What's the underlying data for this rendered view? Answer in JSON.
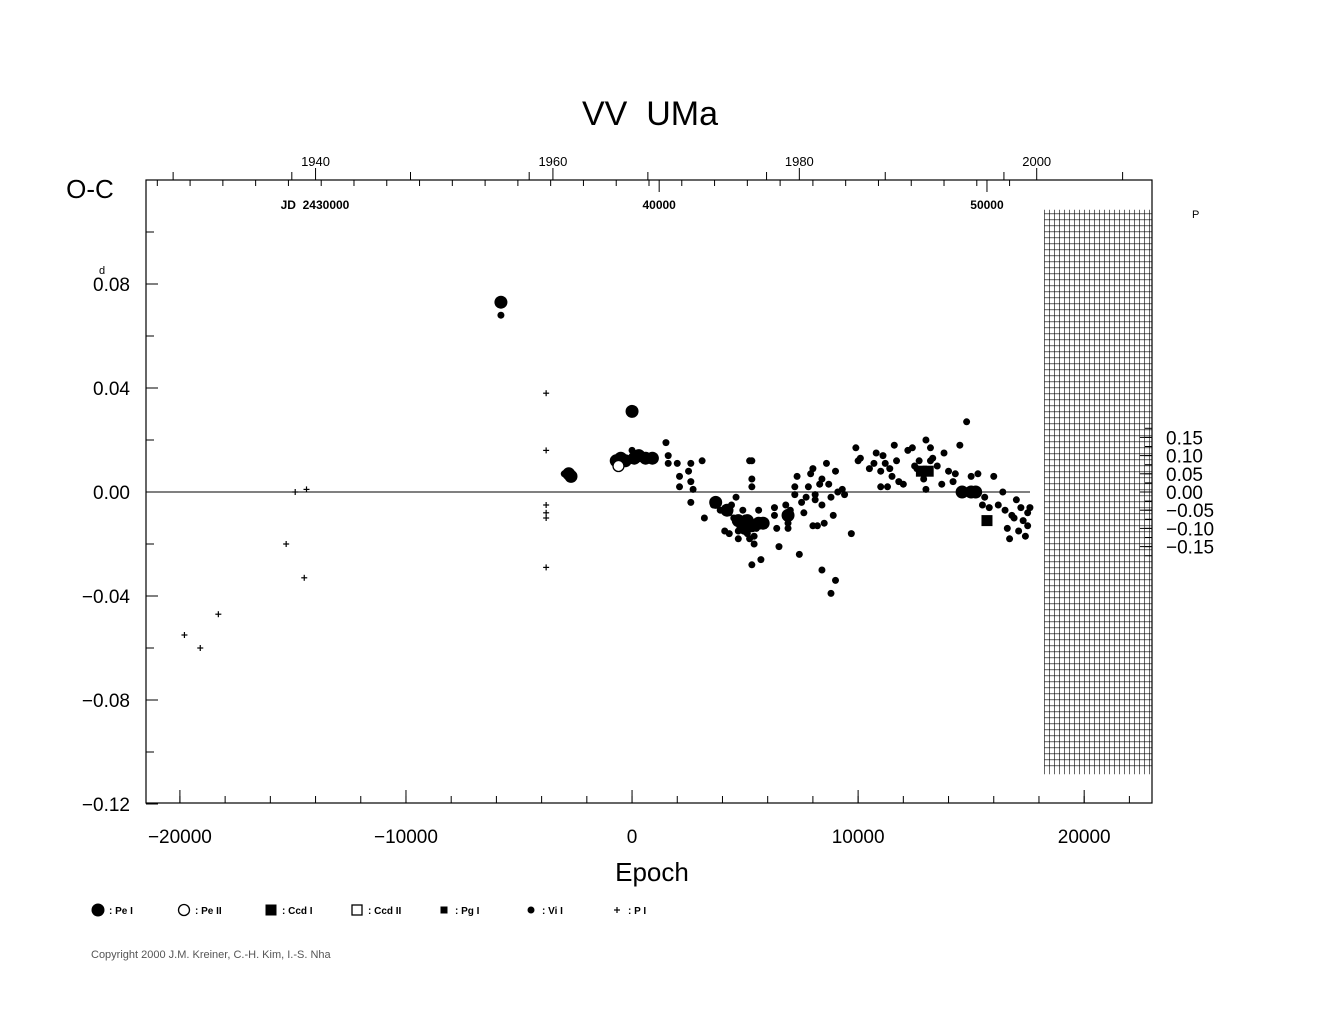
{
  "chart_data": {
    "type": "scatter",
    "title": "VV  UMa",
    "ylabel": "O-C",
    "xlabel": "Epoch",
    "y_unit_left": "d",
    "y_unit_right": "P",
    "xlim": [
      -21500,
      23000
    ],
    "ylim": [
      -0.12,
      0.12
    ],
    "right_axis_ticks": [
      "0.15",
      "0.10",
      "0.05",
      "0.00",
      "−0.05",
      "−0.10",
      "−0.15"
    ],
    "right_axis_values": [
      0.15,
      0.1,
      0.05,
      0.0,
      -0.05,
      -0.1,
      -0.15
    ],
    "right_axis_ratio": 0.14,
    "x_ticks": [
      -20000,
      -10000,
      0,
      10000,
      20000
    ],
    "x_tick_labels": [
      "−20000",
      "−10000",
      "0",
      "10000",
      "20000"
    ],
    "y_ticks": [
      0.08,
      0.04,
      0.0,
      -0.04,
      -0.08,
      -0.12
    ],
    "y_tick_labels": [
      "0.08",
      "0.04",
      "0.00",
      "−0.04",
      "−0.08",
      "−0.12"
    ],
    "top_year_ticks": [
      {
        "label": "1940",
        "epoch": -14000
      },
      {
        "label": "1960",
        "epoch": -3500
      },
      {
        "label": "1980",
        "epoch": 7400
      },
      {
        "label": "2000",
        "epoch": 17900
      }
    ],
    "jd_label": "JD  2430000",
    "jd_ticks": [
      {
        "label": "40000",
        "epoch": 1200
      },
      {
        "label": "50000",
        "epoch": 15700
      }
    ],
    "future_grid": {
      "from_epoch": 17800,
      "to_epoch": 23000,
      "ymin": -0.107,
      "ymax": 0.107
    },
    "series": [
      {
        "name": "Pe I",
        "marker": "circle-filled-large",
        "points": [
          [
            -5800,
            0.073
          ],
          [
            -2700,
            0.006
          ],
          [
            -2800,
            0.007
          ],
          [
            0,
            0.031
          ],
          [
            -700,
            0.012
          ],
          [
            -500,
            0.013
          ],
          [
            -300,
            0.012
          ],
          [
            100,
            0.013
          ],
          [
            300,
            0.014
          ],
          [
            600,
            0.013
          ],
          [
            900,
            0.013
          ],
          [
            3700,
            -0.004
          ],
          [
            4200,
            -0.007
          ],
          [
            4700,
            -0.011
          ],
          [
            4900,
            -0.013
          ],
          [
            5000,
            -0.014
          ],
          [
            5100,
            -0.011
          ],
          [
            5300,
            -0.013
          ],
          [
            5600,
            -0.012
          ],
          [
            5800,
            -0.012
          ],
          [
            6900,
            -0.009
          ],
          [
            14600,
            0.0
          ],
          [
            15000,
            0.0
          ],
          [
            15200,
            0.0
          ]
        ]
      },
      {
        "name": "Pe II",
        "marker": "circle-open",
        "points": [
          [
            -600,
            0.01
          ]
        ]
      },
      {
        "name": "Ccd I",
        "marker": "square-filled",
        "points": [
          [
            15700,
            -0.011
          ],
          [
            12800,
            0.008
          ],
          [
            13100,
            0.008
          ]
        ]
      },
      {
        "name": "Ccd II",
        "marker": "square-open",
        "points": []
      },
      {
        "name": "Pg I",
        "marker": "square-filled-small",
        "points": []
      },
      {
        "name": "Vi I",
        "marker": "circle-filled-small",
        "points": [
          [
            -5800,
            0.068
          ],
          [
            -3000,
            0.007
          ],
          [
            -500,
            0.014
          ],
          [
            0,
            0.016
          ],
          [
            1500,
            0.019
          ],
          [
            1600,
            0.014
          ],
          [
            1600,
            0.011
          ],
          [
            2000,
            0.011
          ],
          [
            2100,
            0.002
          ],
          [
            2100,
            0.006
          ],
          [
            2500,
            0.008
          ],
          [
            2600,
            0.004
          ],
          [
            2600,
            0.011
          ],
          [
            2700,
            0.001
          ],
          [
            2600,
            -0.004
          ],
          [
            3100,
            0.012
          ],
          [
            3200,
            -0.01
          ],
          [
            3600,
            -0.005
          ],
          [
            3900,
            -0.007
          ],
          [
            4100,
            -0.015
          ],
          [
            4300,
            -0.016
          ],
          [
            4300,
            -0.008
          ],
          [
            4400,
            -0.005
          ],
          [
            4500,
            -0.01
          ],
          [
            4600,
            -0.002
          ],
          [
            4700,
            -0.015
          ],
          [
            4700,
            -0.018
          ],
          [
            4900,
            -0.007
          ],
          [
            5000,
            -0.01
          ],
          [
            5100,
            -0.016
          ],
          [
            5200,
            -0.018
          ],
          [
            5200,
            0.012
          ],
          [
            5300,
            0.012
          ],
          [
            5300,
            -0.028
          ],
          [
            5300,
            0.005
          ],
          [
            5300,
            0.002
          ],
          [
            5400,
            -0.017
          ],
          [
            5400,
            -0.02
          ],
          [
            5500,
            -0.014
          ],
          [
            5600,
            -0.007
          ],
          [
            5700,
            -0.026
          ],
          [
            5800,
            -0.012
          ],
          [
            6300,
            -0.006
          ],
          [
            6300,
            -0.009
          ],
          [
            6400,
            -0.014
          ],
          [
            6500,
            -0.021
          ],
          [
            6800,
            -0.005
          ],
          [
            6900,
            -0.012
          ],
          [
            7000,
            -0.007
          ],
          [
            7200,
            -0.001
          ],
          [
            7200,
            0.002
          ],
          [
            7300,
            0.006
          ],
          [
            7400,
            -0.024
          ],
          [
            7500,
            -0.004
          ],
          [
            7700,
            -0.002
          ],
          [
            7800,
            0.002
          ],
          [
            7900,
            0.007
          ],
          [
            8000,
            0.009
          ],
          [
            8000,
            -0.013
          ],
          [
            8100,
            -0.001
          ],
          [
            8200,
            -0.013
          ],
          [
            8300,
            0.003
          ],
          [
            8400,
            0.005
          ],
          [
            8400,
            -0.005
          ],
          [
            8500,
            -0.012
          ],
          [
            8600,
            0.011
          ],
          [
            8700,
            0.003
          ],
          [
            8800,
            -0.002
          ],
          [
            8900,
            -0.009
          ],
          [
            9000,
            0.008
          ],
          [
            9100,
            0.0
          ],
          [
            9300,
            0.001
          ],
          [
            9400,
            -0.001
          ],
          [
            9700,
            -0.016
          ],
          [
            9900,
            0.017
          ],
          [
            10000,
            0.012
          ],
          [
            10100,
            0.013
          ],
          [
            10500,
            0.009
          ],
          [
            10700,
            0.011
          ],
          [
            10800,
            0.015
          ],
          [
            11000,
            0.008
          ],
          [
            11100,
            0.014
          ],
          [
            11200,
            0.011
          ],
          [
            11300,
            0.002
          ],
          [
            11400,
            0.009
          ],
          [
            11500,
            0.006
          ],
          [
            11600,
            0.018
          ],
          [
            11700,
            0.012
          ],
          [
            11800,
            0.004
          ],
          [
            12000,
            0.003
          ],
          [
            12200,
            0.016
          ],
          [
            12400,
            0.017
          ],
          [
            12500,
            0.01
          ],
          [
            12700,
            0.012
          ],
          [
            12900,
            0.005
          ],
          [
            13000,
            0.02
          ],
          [
            13000,
            0.001
          ],
          [
            13200,
            0.017
          ],
          [
            13300,
            0.013
          ],
          [
            13500,
            0.01
          ],
          [
            13700,
            0.003
          ],
          [
            13800,
            0.015
          ],
          [
            14000,
            0.008
          ],
          [
            14200,
            0.004
          ],
          [
            14300,
            0.007
          ],
          [
            14500,
            0.018
          ],
          [
            14800,
            0.027
          ],
          [
            15000,
            0.006
          ],
          [
            15300,
            0.007
          ],
          [
            15500,
            -0.005
          ],
          [
            15600,
            -0.002
          ],
          [
            15800,
            -0.006
          ],
          [
            16000,
            0.006
          ],
          [
            16200,
            -0.005
          ],
          [
            16400,
            0.0
          ],
          [
            16500,
            -0.007
          ],
          [
            16600,
            -0.014
          ],
          [
            16700,
            -0.018
          ],
          [
            16800,
            -0.009
          ],
          [
            16900,
            -0.01
          ],
          [
            17000,
            -0.003
          ],
          [
            17100,
            -0.015
          ],
          [
            17200,
            -0.006
          ],
          [
            17300,
            -0.011
          ],
          [
            17400,
            -0.017
          ],
          [
            17500,
            -0.008
          ],
          [
            17500,
            -0.013
          ],
          [
            17600,
            -0.006
          ],
          [
            8400,
            -0.03
          ],
          [
            8800,
            -0.039
          ],
          [
            9000,
            -0.034
          ],
          [
            5100,
            -0.015
          ],
          [
            4700,
            -0.012
          ],
          [
            6900,
            -0.014
          ],
          [
            7600,
            -0.008
          ],
          [
            8100,
            -0.003
          ],
          [
            11000,
            0.002
          ],
          [
            12600,
            0.009
          ],
          [
            13200,
            0.012
          ]
        ]
      },
      {
        "name": "P I",
        "marker": "plus",
        "points": [
          [
            -19800,
            -0.055
          ],
          [
            -19100,
            -0.06
          ],
          [
            -18300,
            -0.047
          ],
          [
            -15300,
            -0.02
          ],
          [
            -14900,
            0.0
          ],
          [
            -14400,
            0.001
          ],
          [
            -14500,
            -0.033
          ],
          [
            -3800,
            0.038
          ],
          [
            -3800,
            0.016
          ],
          [
            -3800,
            -0.005
          ],
          [
            -3800,
            -0.008
          ],
          [
            -3800,
            -0.01
          ],
          [
            -3800,
            -0.029
          ]
        ]
      }
    ]
  },
  "legend": [
    {
      "label": ": Pe I",
      "marker": "circle-filled-large"
    },
    {
      "label": ": Pe II",
      "marker": "circle-open"
    },
    {
      "label": ": Ccd I",
      "marker": "square-filled"
    },
    {
      "label": ": Ccd II",
      "marker": "square-open"
    },
    {
      "label": ": Pg I",
      "marker": "square-filled-small"
    },
    {
      "label": ": Vi I",
      "marker": "circle-filled-small"
    },
    {
      "label": ": P I",
      "marker": "plus"
    }
  ],
  "copyright": "Copyright 2000 J.M. Kreiner, C.-H. Kim, I.-S. Nha"
}
